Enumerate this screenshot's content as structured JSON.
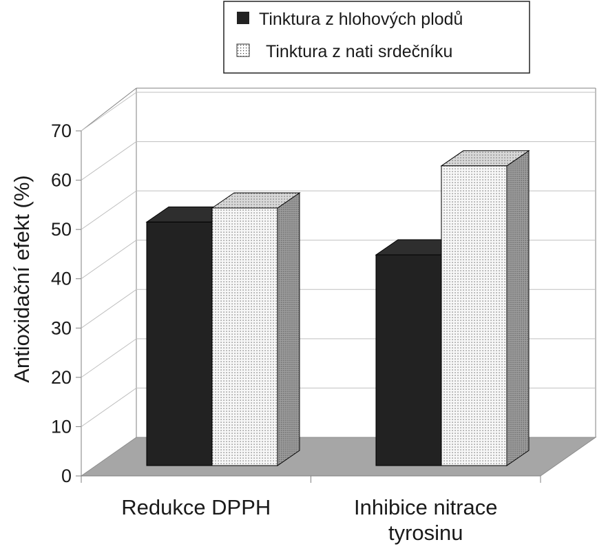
{
  "chart_data": {
    "type": "bar",
    "style": "3d-clustered-column",
    "title": "",
    "xlabel": "",
    "ylabel": "Antioxidační efekt (%)",
    "ylim": [
      0,
      70
    ],
    "yticks": [
      "0",
      "10",
      "20",
      "30",
      "40",
      "50",
      "60",
      "70"
    ],
    "grid": true,
    "legend_position": "top-right",
    "categories": [
      [
        "Redukce DPPH"
      ],
      [
        "Inhibice nitrace",
        "tyrosinu"
      ]
    ],
    "series": [
      {
        "name": "Tinktura z hlohových plodů",
        "pattern": "solid-black",
        "color": "#222222",
        "values": [
          52,
          45
        ]
      },
      {
        "name": "Tinktura z nati srdečníku",
        "pattern": "dotted",
        "color": "#f4f4f4",
        "values": [
          55,
          64
        ]
      }
    ],
    "colors": {
      "floor": "#a6a6a6",
      "frame": "#7f7f7f",
      "grid": "#bfbfbf"
    }
  }
}
